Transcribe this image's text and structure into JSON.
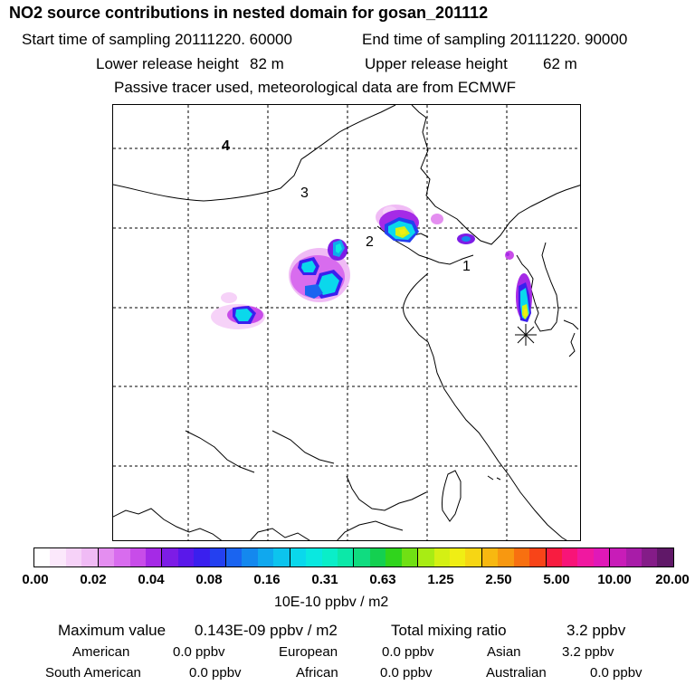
{
  "header": {
    "title": "NO2 source contributions in nested domain for gosan_201112",
    "start_label": "Start time of sampling 20111220. 60000",
    "end_label": "End time of sampling 20111220. 90000",
    "lower_label": "Lower release height",
    "lower_value": "82 m",
    "upper_label": "Upper release height",
    "upper_value": "62 m",
    "note": "Passive tracer used, meteorological data are from ECMWF"
  },
  "map": {
    "region_labels": [
      "1",
      "2",
      "3",
      "4"
    ]
  },
  "colorbar": {
    "ticks": [
      "0.00",
      "0.02",
      "0.04",
      "0.08",
      "0.16",
      "0.31",
      "0.63",
      "1.25",
      "2.50",
      "5.00",
      "10.00",
      "20.00"
    ],
    "unit": "10E-10 ppbv / m2",
    "colors": [
      "#ffffff",
      "#fbe8fb",
      "#f6d2f8",
      "#f0bbf5",
      "#e48ef0",
      "#d86cee",
      "#c84ce9",
      "#a52ae6",
      "#7d1ce6",
      "#5a18ea",
      "#3a1fee",
      "#2440f0",
      "#1a64f0",
      "#1488ee",
      "#10a8ee",
      "#0cc4ee",
      "#0ad8ec",
      "#0ae8e0",
      "#0aeec8",
      "#0ce8a8",
      "#10dc80",
      "#14d050",
      "#30d41c",
      "#70e014",
      "#a8ec14",
      "#d4f014",
      "#f0ee14",
      "#f6d614",
      "#f8b810",
      "#f89810",
      "#f87010",
      "#f84418",
      "#f81c40",
      "#f81478",
      "#f018a0",
      "#e018b8",
      "#c81cb8",
      "#a81ca8",
      "#841c88",
      "#601868"
    ]
  },
  "stats": {
    "max_label": "Maximum value",
    "max_value": "0.143E-09 ppbv / m2",
    "total_label": "Total mixing ratio",
    "total_value": "3.2 ppbv",
    "sources": [
      {
        "name": "American",
        "value": "0.0 ppbv"
      },
      {
        "name": "European",
        "value": "0.0 ppbv"
      },
      {
        "name": "Asian",
        "value": "3.2 ppbv"
      },
      {
        "name": "South American",
        "value": "0.0 ppbv"
      },
      {
        "name": "African",
        "value": "0.0 ppbv"
      },
      {
        "name": "Australian",
        "value": "0.0 ppbv"
      }
    ]
  }
}
